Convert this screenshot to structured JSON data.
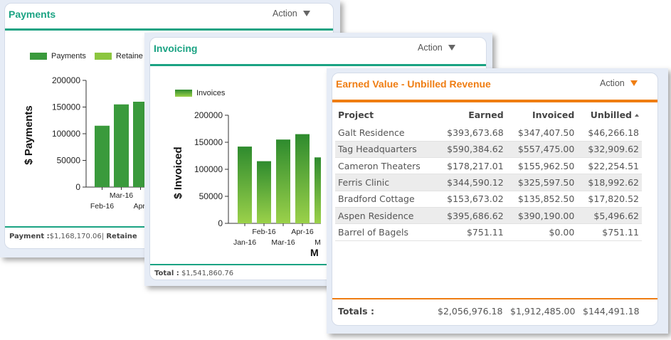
{
  "payments": {
    "title": "Payments",
    "action_label": "Action",
    "colors": {
      "title": "#1ba383",
      "rule": "#1ba383"
    },
    "legend": [
      {
        "label": "Payments",
        "color": "#3a9a3c"
      },
      {
        "label": "Retaine",
        "color": "#8cc63f"
      }
    ],
    "footer": {
      "payment_label": "Payment :",
      "payment_value": "$1,168,170.06",
      "separator": "|",
      "retainer_label": "Retaine"
    },
    "chart_data": {
      "type": "bar",
      "ylabel": "$ Payments",
      "ylim": [
        0,
        200000
      ],
      "yticks": [
        "0",
        "50000",
        "100000",
        "150000",
        "200000"
      ],
      "categories": [
        "Feb-16",
        "Mar-16",
        "Apr-"
      ],
      "series": [
        {
          "name": "Payments",
          "values": [
            115000,
            155000,
            160000
          ]
        }
      ],
      "color": "#3a9a3c"
    }
  },
  "invoicing": {
    "title": "Invoicing",
    "action_label": "Action",
    "colors": {
      "title": "#1ba383",
      "rule": "#1ba383"
    },
    "legend": [
      {
        "label": "Invoices",
        "color": "#3a9a3c"
      }
    ],
    "footer": {
      "total_label": "Total :",
      "total_value": "$1,541,860.76"
    },
    "x_axis_cut_label": "M",
    "chart_data": {
      "type": "bar",
      "ylabel": "$ Invoiced",
      "ylim": [
        0,
        200000
      ],
      "yticks": [
        "0",
        "50000",
        "100000",
        "150000",
        "200000"
      ],
      "categories": [
        "Jan-16",
        "Feb-16",
        "Mar-16",
        "Apr-16",
        "May"
      ],
      "series": [
        {
          "name": "Invoices",
          "values": [
            142000,
            115000,
            155000,
            165000,
            122000
          ]
        }
      ],
      "gradient": [
        "#2e8b2e",
        "#9bd14a"
      ]
    }
  },
  "earned_value": {
    "title": "Earned Value - Unbilled Revenue",
    "action_label": "Action",
    "colors": {
      "title": "#ef7d12",
      "rule": "#ef7d12",
      "arrow": "#ef7d12"
    },
    "columns": [
      "Project",
      "Earned",
      "Invoiced",
      "Unbilled"
    ],
    "rows": [
      {
        "project": "Galt Residence",
        "earned": "$393,673.68",
        "invoiced": "$347,407.50",
        "unbilled": "$46,266.18"
      },
      {
        "project": "Tag Headquarters",
        "earned": "$590,384.62",
        "invoiced": "$557,475.00",
        "unbilled": "$32,909.62"
      },
      {
        "project": "Cameron Theaters",
        "earned": "$178,217.01",
        "invoiced": "$155,962.50",
        "unbilled": "$22,254.51"
      },
      {
        "project": "Ferris Clinic",
        "earned": "$344,590.12",
        "invoiced": "$325,597.50",
        "unbilled": "$18,992.62"
      },
      {
        "project": "Bradford Cottage",
        "earned": "$153,673.02",
        "invoiced": "$135,852.50",
        "unbilled": "$17,820.52"
      },
      {
        "project": "Aspen Residence",
        "earned": "$395,686.62",
        "invoiced": "$390,190.00",
        "unbilled": "$5,496.62"
      },
      {
        "project": "Barrel of Bagels",
        "earned": "$751.11",
        "invoiced": "$0.00",
        "unbilled": "$751.11"
      }
    ],
    "totals": {
      "label": "Totals :",
      "earned": "$2,056,976.18",
      "invoiced": "$1,912,485.00",
      "unbilled": "$144,491.18"
    }
  }
}
